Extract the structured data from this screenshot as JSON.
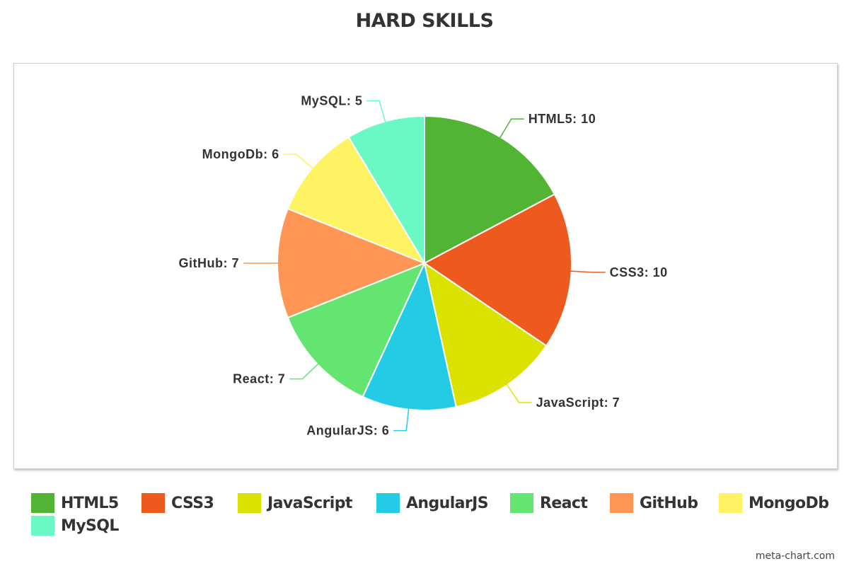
{
  "chart_data": {
    "type": "pie",
    "title": "HARD SKILLS",
    "categories": [
      "HTML5",
      "CSS3",
      "JavaScript",
      "AngularJS",
      "React",
      "GitHub",
      "MongoDb",
      "MySQL"
    ],
    "values": [
      10,
      10,
      7,
      6,
      7,
      7,
      6,
      5
    ],
    "data_labels": [
      "HTML5: 10",
      "CSS3: 10",
      "JavaScript: 7",
      "AngularJS: 6",
      "React: 7",
      "GitHub: 7",
      "MongoDb: 6",
      "MySQL: 5"
    ],
    "colors": [
      "#52b435",
      "#ee5a1e",
      "#dce200",
      "#24cbe5",
      "#64e572",
      "#ff9655",
      "#fff263",
      "#6af9c4"
    ],
    "legend": {
      "position": "bottom",
      "entries": [
        "HTML5",
        "CSS3",
        "JavaScript",
        "AngularJS",
        "React",
        "GitHub",
        "MongoDb",
        "MySQL"
      ]
    }
  },
  "footer": {
    "credit": "meta-chart.com"
  }
}
